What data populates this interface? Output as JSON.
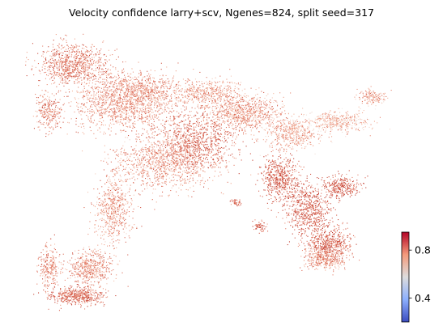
{
  "chart_data": {
    "type": "scatter",
    "title": "Velocity confidence larry+scv, Ngenes=824, split seed=317",
    "xlabel": "",
    "ylabel": "",
    "axes_visible": false,
    "color_scale": {
      "name": "coolwarm",
      "colors": [
        "#3b4cc0",
        "#dddddd",
        "#b40426"
      ],
      "range": [
        0.2,
        0.95
      ],
      "ticks": [
        0.4,
        0.8
      ],
      "tick_labels": [
        "0.4",
        "0.8"
      ]
    },
    "description_colors": {
      "high": "#c0392b",
      "mid": "#f2b39a",
      "low": "#f0f0f0"
    }
  }
}
